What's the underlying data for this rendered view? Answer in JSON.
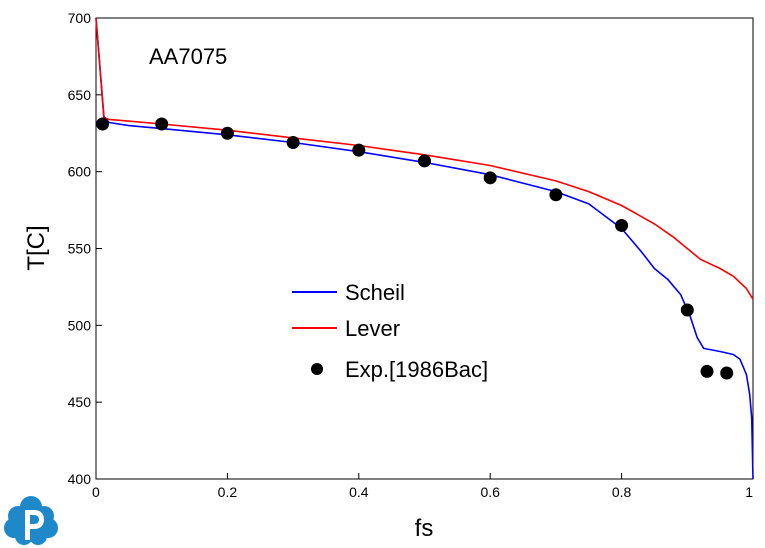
{
  "chart_data": {
    "type": "line",
    "title": "",
    "annotation": "AA7075",
    "xlabel": "fs",
    "ylabel": "T[C]",
    "xlim": [
      0,
      1
    ],
    "ylim": [
      400,
      700
    ],
    "xticks": [
      0,
      0.2,
      0.4,
      0.6,
      0.8,
      1
    ],
    "xtick_labels": [
      "0",
      "0.2",
      "0.4",
      "0.6",
      "0.8",
      "1"
    ],
    "yticks": [
      400,
      450,
      500,
      550,
      600,
      650,
      700
    ],
    "ytick_labels": [
      "400",
      "450",
      "500",
      "550",
      "600",
      "650",
      "700"
    ],
    "grid": false,
    "legend_position": "center",
    "series": [
      {
        "name": "Scheil",
        "kind": "line",
        "color": "#0000ff",
        "x": [
          0,
          0.012,
          0.02,
          0.05,
          0.1,
          0.2,
          0.3,
          0.4,
          0.5,
          0.6,
          0.7,
          0.75,
          0.8,
          0.83,
          0.85,
          0.87,
          0.89,
          0.905,
          0.915,
          0.925,
          0.95,
          0.97,
          0.98,
          0.99,
          0.995,
          0.998,
          1.0
        ],
        "y": [
          700,
          636,
          632,
          630,
          628,
          624,
          619,
          613,
          606,
          598,
          587,
          579,
          563,
          548,
          537,
          530,
          520,
          505,
          492,
          485,
          483,
          481,
          478,
          468,
          455,
          440,
          400
        ]
      },
      {
        "name": "Lever",
        "kind": "line",
        "color": "#ff0000",
        "x": [
          0,
          0.012,
          0.02,
          0.1,
          0.2,
          0.3,
          0.4,
          0.5,
          0.6,
          0.7,
          0.75,
          0.8,
          0.85,
          0.88,
          0.9,
          0.92,
          0.95,
          0.97,
          0.99,
          1.0
        ],
        "y": [
          700,
          635,
          634,
          631,
          627,
          622,
          617,
          611,
          604,
          594,
          587,
          578,
          566,
          557,
          550,
          543,
          537,
          532,
          524,
          517
        ]
      },
      {
        "name": "Exp.[1986Bac]",
        "kind": "scatter",
        "color": "#000000",
        "x": [
          0.01,
          0.1,
          0.2,
          0.3,
          0.4,
          0.5,
          0.6,
          0.7,
          0.8,
          0.9,
          0.93,
          0.96
        ],
        "y": [
          631,
          631,
          625,
          619,
          614,
          607,
          596,
          585,
          565,
          510,
          470,
          469
        ]
      }
    ]
  }
}
